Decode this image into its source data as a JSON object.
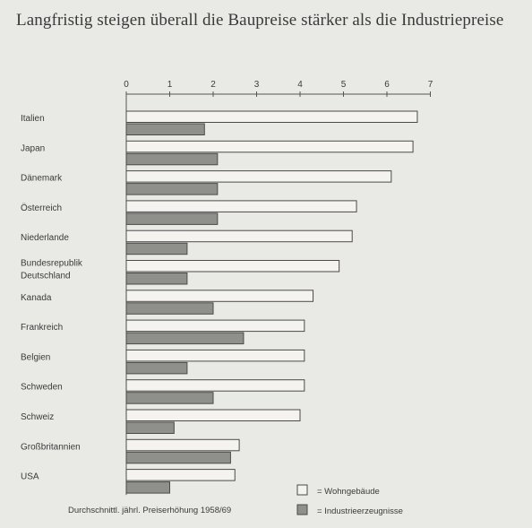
{
  "chart_data": {
    "type": "bar",
    "orientation": "horizontal",
    "title": "Langfristig steigen überall die Baupreise stärker als die Industriepreise",
    "categories": [
      "Italien",
      "Japan",
      "Dänemark",
      "Österreich",
      "Niederlande",
      "Bundesrepublik Deutschland",
      "Kanada",
      "Frankreich",
      "Belgien",
      "Schweden",
      "Schweiz",
      "Großbritannien",
      "USA"
    ],
    "category_lines": [
      [
        "Italien"
      ],
      [
        "Japan"
      ],
      [
        "Dänemark"
      ],
      [
        "Österreich"
      ],
      [
        "Niederlande"
      ],
      [
        "Bundesrepublik",
        "Deutschland"
      ],
      [
        "Kanada"
      ],
      [
        "Frankreich"
      ],
      [
        "Belgien"
      ],
      [
        "Schweden"
      ],
      [
        "Schweiz"
      ],
      [
        "Großbritannien"
      ],
      [
        "USA"
      ]
    ],
    "series": [
      {
        "name": "Wohngebäude",
        "color": "#f4f3ef",
        "values": [
          6.7,
          6.6,
          6.1,
          5.3,
          5.2,
          4.9,
          4.3,
          4.1,
          4.1,
          4.1,
          4.0,
          2.6,
          2.5
        ]
      },
      {
        "name": "Industrieerzeugnisse",
        "color": "#8f8f8c",
        "values": [
          1.8,
          2.1,
          2.1,
          2.1,
          1.4,
          1.4,
          2.0,
          2.7,
          1.4,
          2.0,
          1.1,
          2.4,
          1.0
        ]
      }
    ],
    "x_ticks": [
      0,
      1,
      2,
      3,
      4,
      5,
      6,
      7
    ],
    "xlim": [
      0,
      7
    ],
    "legend": {
      "position": "bottom-right",
      "separator": "=",
      "labels": [
        "Wohngebäude",
        "Industrieerzeugnisse"
      ]
    },
    "note": "Durchschnittl. jährl. Preiserhöhung 1958/69",
    "grid": false
  }
}
